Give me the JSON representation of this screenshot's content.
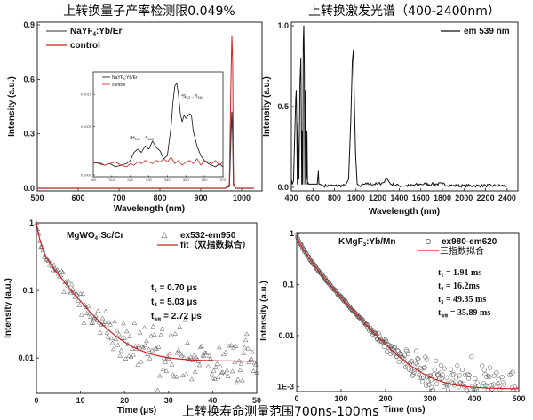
{
  "footer_caption": "上转换寿命测量范围700ns-100ms",
  "chart_data": [
    {
      "type": "line",
      "title": "上转换量子产率检测限0.049%",
      "xlabel": "Wavelength (nm)",
      "ylabel": "Intensity (a.u.)",
      "xlim": [
        500,
        1050
      ],
      "ylim": [
        0.0,
        0.9
      ],
      "xticks": [
        500,
        600,
        700,
        800,
        900,
        1000
      ],
      "yticks": [
        0.0,
        0.3,
        0.6,
        0.9
      ],
      "ytick_labels": [
        "0.0",
        "0.3",
        "0.6",
        "0.9"
      ],
      "legend": "top-left",
      "series": [
        {
          "name": "NaYF4:Yb/Er",
          "name_main": "NaYF",
          "name_sub": "4",
          "name_rest": ":Yb/Er",
          "color": "#333333",
          "x": [
            500,
            960,
            970,
            974,
            976,
            978,
            980,
            985,
            1030
          ],
          "y": [
            0.0,
            0.0,
            0.01,
            0.3,
            0.42,
            0.3,
            0.02,
            0.0,
            0.0
          ]
        },
        {
          "name": "control",
          "color": "#cc2222",
          "x": [
            500,
            960,
            970,
            974,
            976,
            978,
            980,
            985,
            1030
          ],
          "y": [
            0.0,
            0.0,
            0.02,
            0.6,
            0.84,
            0.7,
            0.03,
            0.0,
            0.0
          ]
        }
      ],
      "inset": {
        "xlim": [
          500,
          570
        ],
        "xticks": [
          500,
          510,
          520,
          530,
          540,
          550,
          560,
          570
        ],
        "ytick_labels": [
          "0.0010",
          "0.0005",
          "0.0000"
        ],
        "legend": "top-left",
        "annotations": [
          "4H11/2→4I15/2",
          "4S3/2→4I15/2"
        ],
        "series": [
          {
            "name": "NaYF4:Yb/Er",
            "color": "#111111",
            "x": [
              500,
              503,
              506,
              509,
              512,
              515,
              518,
              520,
              522,
              524,
              526,
              528,
              530,
              532,
              534,
              536,
              538,
              540,
              542,
              543,
              544,
              545,
              546,
              547,
              548,
              549,
              550,
              552,
              553,
              554,
              556,
              558,
              560,
              562,
              564,
              566,
              568,
              570
            ],
            "y": [
              0.08,
              0.07,
              0.06,
              0.07,
              0.05,
              0.06,
              0.07,
              0.09,
              0.14,
              0.16,
              0.14,
              0.18,
              0.16,
              0.21,
              0.17,
              0.15,
              0.1,
              0.12,
              0.3,
              0.45,
              0.55,
              0.57,
              0.5,
              0.38,
              0.33,
              0.37,
              0.35,
              0.38,
              0.37,
              0.27,
              0.18,
              0.12,
              0.09,
              0.07,
              0.06,
              0.05,
              0.07,
              0.05
            ]
          },
          {
            "name": "control",
            "color": "#cc2222",
            "x": [
              500,
              503,
              506,
              509,
              512,
              515,
              518,
              520,
              522,
              524,
              526,
              528,
              530,
              532,
              534,
              536,
              538,
              540,
              542,
              544,
              546,
              548,
              550,
              552,
              554,
              556,
              558,
              560,
              562,
              564,
              566,
              568,
              570
            ],
            "y": [
              0.07,
              0.08,
              0.06,
              0.07,
              0.08,
              0.06,
              0.05,
              0.07,
              0.06,
              0.08,
              0.07,
              0.09,
              0.08,
              0.07,
              0.09,
              0.08,
              0.1,
              0.08,
              0.11,
              0.07,
              0.09,
              0.06,
              0.08,
              0.09,
              0.07,
              0.1,
              0.06,
              0.09,
              0.08,
              0.07,
              0.09,
              0.06,
              0.08
            ]
          }
        ]
      }
    },
    {
      "type": "line",
      "title": "上转换激发光谱（400-2400nm）",
      "xlabel": "Wavelength (nm)",
      "ylabel": "Intensity (a.u.)",
      "xlim": [
        400,
        2500
      ],
      "ylim": [
        0.0,
        1.0
      ],
      "xticks": [
        400,
        600,
        800,
        1000,
        1200,
        1400,
        1600,
        1800,
        2000,
        2200,
        2400
      ],
      "yticks": [
        0.0,
        0.5,
        1.0
      ],
      "ytick_labels": [
        "0.0",
        "0.5",
        "1.0"
      ],
      "legend": "top-right",
      "series": [
        {
          "name": "em 539 nm",
          "color": "#111111",
          "x": [
            400,
            410,
            420,
            440,
            445,
            450,
            455,
            460,
            470,
            480,
            488,
            492,
            496,
            500,
            505,
            510,
            515,
            520,
            525,
            530,
            540,
            545,
            550,
            555,
            560,
            600,
            640,
            650,
            655,
            660,
            700,
            800,
            900,
            930,
            950,
            965,
            975,
            985,
            995,
            1010,
            1030,
            1100,
            1200,
            1260,
            1280,
            1300,
            1320,
            1400,
            1500,
            1600,
            1700,
            1800,
            1900,
            2000,
            2100,
            2200,
            2300,
            2400
          ],
          "y": [
            0.05,
            0.02,
            0.04,
            0.55,
            0.6,
            0.35,
            0.02,
            0.4,
            0.05,
            0.65,
            0.8,
            0.4,
            0.02,
            0.35,
            0.02,
            0.9,
            1.0,
            0.75,
            0.02,
            0.6,
            0.05,
            0.35,
            0.02,
            0.03,
            0.02,
            0.02,
            0.02,
            0.1,
            0.02,
            0.02,
            0.01,
            0.01,
            0.01,
            0.05,
            0.4,
            0.78,
            0.85,
            0.5,
            0.2,
            0.02,
            0.01,
            0.02,
            0.02,
            0.03,
            0.06,
            0.04,
            0.02,
            0.01,
            0.01,
            0.02,
            0.02,
            0.02,
            0.01,
            0.01,
            0.01,
            0.01,
            0.01,
            0.01
          ]
        }
      ]
    },
    {
      "type": "scatter",
      "title": "",
      "xlabel": "Time (μs)",
      "ylabel": "Intensity (a.u.)",
      "yscale": "log",
      "xlim": [
        0,
        50
      ],
      "ylim": [
        0.003,
        1
      ],
      "xticks": [
        0,
        10,
        20,
        30,
        40,
        50
      ],
      "yticks": [
        1,
        0.1,
        0.01
      ],
      "ytick_labels": [
        "1",
        "0.1",
        "0.01"
      ],
      "legend": "top-right",
      "sample_label": "MgWO4:Sc/Cr",
      "sample_main": "MgWO",
      "sample_sub": "4",
      "sample_rest": ":Sc/Cr",
      "series": [
        {
          "name": "ex532-em950",
          "marker": "triangle",
          "color": "#555555",
          "model": "fit+noise"
        },
        {
          "name": "fit（双指数拟合）",
          "color": "#cc2222",
          "model": "biexp",
          "tau1": 0.7,
          "tau2": 5.03,
          "floor": 0.009
        }
      ],
      "annotations": [
        {
          "var": "t",
          "sub": "1",
          "text": " = 0.70 μs"
        },
        {
          "var": "t",
          "sub": "2",
          "text": " = 5.03 μs"
        },
        {
          "var": "t",
          "sub": "有效",
          "text": " = 2.72 μs"
        }
      ]
    },
    {
      "type": "scatter",
      "title": "",
      "xlabel": "Time (ms)",
      "ylabel": "Intensity (a.u.)",
      "yscale": "log",
      "xlim": [
        0,
        500
      ],
      "ylim": [
        0.0008,
        1
      ],
      "xticks": [
        0,
        100,
        200,
        300,
        400,
        500
      ],
      "yticks": [
        1,
        0.1,
        0.01,
        0.001
      ],
      "ytick_labels": [
        "1",
        "0.1",
        "0.01",
        "1E-3"
      ],
      "legend": "top-right",
      "sample_label": "KMgF3:Yb/Mn",
      "sample_main": "KMgF",
      "sample_sub": "3",
      "sample_rest": ":Yb/Mn",
      "series": [
        {
          "name": "ex980-em620",
          "marker": "circle",
          "color": "#555555",
          "model": "fit+noise"
        },
        {
          "name": "三指数拟合",
          "color": "#cc2222",
          "model": "triexp",
          "tau1": 1.91,
          "tau2": 16.2,
          "tau3": 49.35,
          "floor": 0.0009
        }
      ],
      "annotations": [
        {
          "var": "t",
          "sub": "1",
          "text": " = 1.91 ms"
        },
        {
          "var": "t",
          "sub": "2",
          "text": " = 16.2ms"
        },
        {
          "var": "t",
          "sub": "3",
          "text": " = 49.35 ms"
        },
        {
          "var": "t",
          "sub": "有效",
          "text": " = 35.89 ms"
        }
      ]
    }
  ]
}
